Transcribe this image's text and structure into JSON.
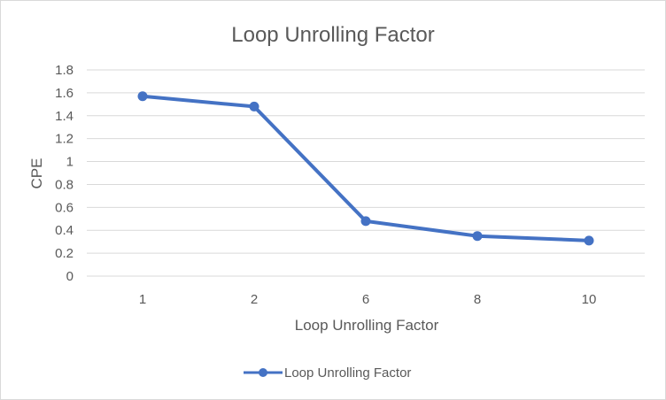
{
  "chart_data": {
    "type": "line",
    "title": "Loop Unrolling Factor",
    "xlabel": "Loop Unrolling Factor",
    "ylabel": "CPE",
    "categories": [
      "1",
      "2",
      "6",
      "8",
      "10"
    ],
    "series": [
      {
        "name": "Loop Unrolling Factor",
        "values": [
          1.57,
          1.48,
          0.48,
          0.35,
          0.31
        ],
        "color": "#4472C4"
      }
    ],
    "ylim": [
      0,
      1.8
    ],
    "yticks": [
      "0",
      "0.2",
      "0.4",
      "0.6",
      "0.8",
      "1",
      "1.2",
      "1.4",
      "1.6",
      "1.8"
    ],
    "grid": true,
    "legend_position": "bottom",
    "gridline_color": "#d9d9d9",
    "text_color": "#595959"
  }
}
